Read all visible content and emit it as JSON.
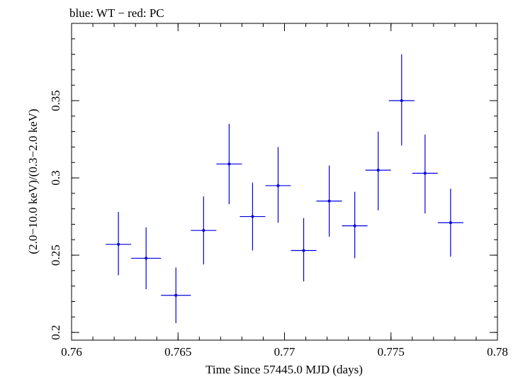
{
  "chart_data": {
    "type": "scatter",
    "title": "blue: WT − red: PC",
    "xlabel": "Time Since 57445.0 MJD (days)",
    "ylabel": "(2.0−10.0 keV)/(0.3−2.0 keV)",
    "xlim": [
      0.76,
      0.78
    ],
    "ylim": [
      0.195,
      0.4
    ],
    "x_ticks": [
      {
        "value": 0.76,
        "label": "0.76"
      },
      {
        "value": 0.765,
        "label": "0.765"
      },
      {
        "value": 0.77,
        "label": "0.77"
      },
      {
        "value": 0.775,
        "label": "0.775"
      },
      {
        "value": 0.78,
        "label": "0.78"
      }
    ],
    "y_ticks": [
      {
        "value": 0.2,
        "label": "0.2"
      },
      {
        "value": 0.25,
        "label": "0.25"
      },
      {
        "value": 0.3,
        "label": "0.3"
      },
      {
        "value": 0.35,
        "label": "0.35"
      }
    ],
    "x_minor_step": 0.001,
    "y_minor_step": 0.01,
    "grid": false,
    "series": [
      {
        "color": "#0000dd",
        "points": [
          {
            "x": 0.7622,
            "xerr": 0.0006,
            "y": 0.257,
            "ylo": 0.237,
            "yhi": 0.278
          },
          {
            "x": 0.7635,
            "xerr": 0.0007,
            "y": 0.248,
            "ylo": 0.228,
            "yhi": 0.268
          },
          {
            "x": 0.7649,
            "xerr": 0.0007,
            "y": 0.224,
            "ylo": 0.206,
            "yhi": 0.242
          },
          {
            "x": 0.7662,
            "xerr": 0.0006,
            "y": 0.266,
            "ylo": 0.244,
            "yhi": 0.288
          },
          {
            "x": 0.7674,
            "xerr": 0.0006,
            "y": 0.309,
            "ylo": 0.283,
            "yhi": 0.335
          },
          {
            "x": 0.7685,
            "xerr": 0.0006,
            "y": 0.275,
            "ylo": 0.253,
            "yhi": 0.297
          },
          {
            "x": 0.7697,
            "xerr": 0.0006,
            "y": 0.295,
            "ylo": 0.271,
            "yhi": 0.32
          },
          {
            "x": 0.7709,
            "xerr": 0.0006,
            "y": 0.253,
            "ylo": 0.233,
            "yhi": 0.274
          },
          {
            "x": 0.7721,
            "xerr": 0.0006,
            "y": 0.285,
            "ylo": 0.262,
            "yhi": 0.308
          },
          {
            "x": 0.7733,
            "xerr": 0.0006,
            "y": 0.269,
            "ylo": 0.248,
            "yhi": 0.291
          },
          {
            "x": 0.7744,
            "xerr": 0.0006,
            "y": 0.305,
            "ylo": 0.279,
            "yhi": 0.33
          },
          {
            "x": 0.7755,
            "xerr": 0.0006,
            "y": 0.35,
            "ylo": 0.321,
            "yhi": 0.38
          },
          {
            "x": 0.7766,
            "xerr": 0.0006,
            "y": 0.303,
            "ylo": 0.277,
            "yhi": 0.328
          },
          {
            "x": 0.7778,
            "xerr": 0.0006,
            "y": 0.271,
            "ylo": 0.249,
            "yhi": 0.293
          }
        ]
      }
    ]
  }
}
